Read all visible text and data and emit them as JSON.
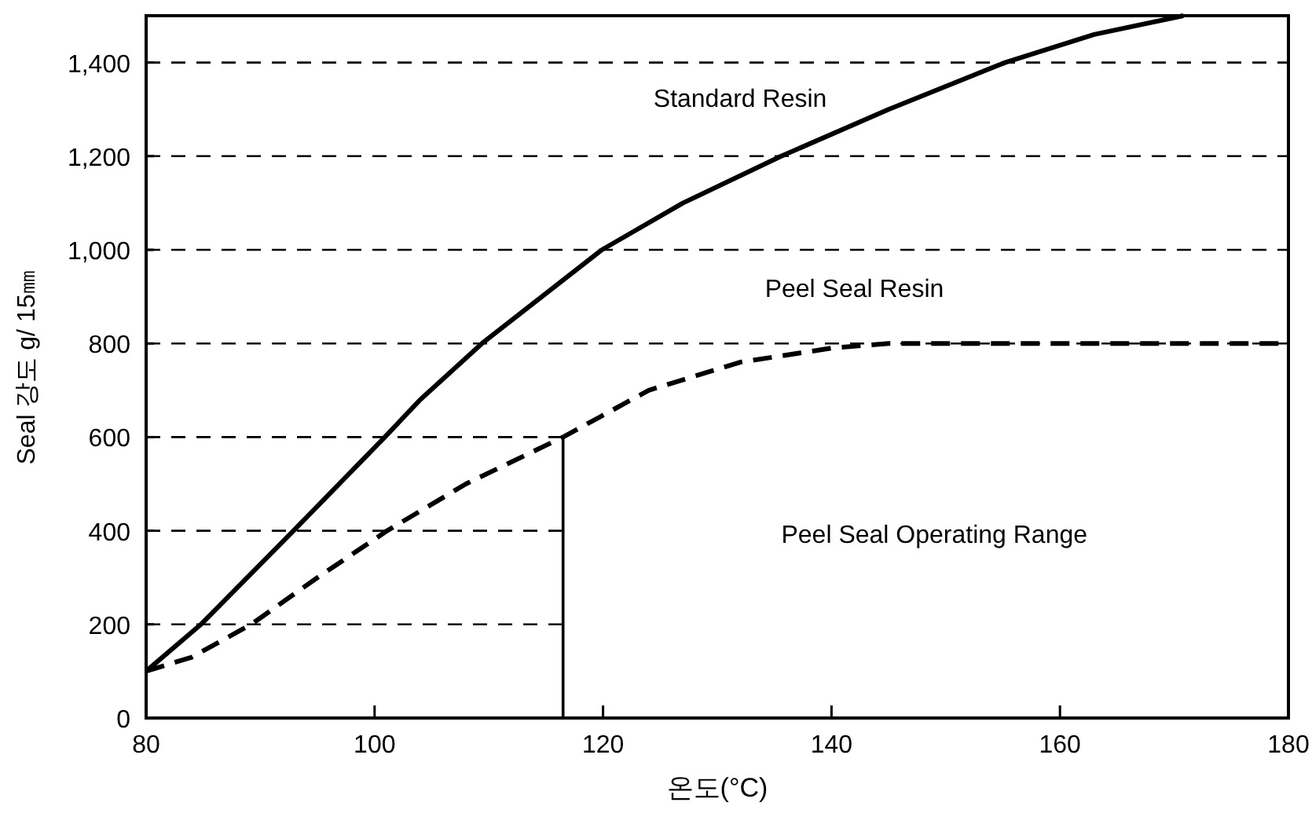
{
  "chart_data": {
    "type": "line",
    "xlabel": "온도(°C)",
    "ylabel": "Seal 강도 g/ 15㎜",
    "xlim": [
      80,
      180
    ],
    "ylim": [
      0,
      1500
    ],
    "xticks": [
      80,
      100,
      120,
      140,
      160,
      180
    ],
    "yticks": [
      0,
      200,
      400,
      600,
      800,
      {
        "value": 1000,
        "label": "1,000"
      },
      {
        "value": 1200,
        "label": "1,200"
      },
      {
        "value": 1400,
        "label": "1,400"
      }
    ],
    "legend": false,
    "series": [
      {
        "name": "Standard Resin",
        "color": "#000000",
        "line_style": "solid",
        "x": [
          80,
          84.8,
          92.9,
          100.9,
          104,
          109.4,
          119.9,
          127,
          135.6,
          145,
          155.2,
          163,
          170.8
        ],
        "values": [
          100,
          200,
          400,
          600,
          680,
          800,
          1000,
          1100,
          1200,
          1300,
          1400,
          1460,
          1500
        ]
      },
      {
        "name": "Peel Seal Resin",
        "color": "#000000",
        "line_style": "dashed",
        "x": [
          80,
          84,
          89.2,
          95,
          101.1,
          108,
          116.5,
          124,
          132,
          140,
          145,
          160,
          180
        ],
        "values": [
          100,
          130,
          200,
          300,
          400,
          500,
          600,
          700,
          760,
          790,
          800,
          800,
          800
        ]
      }
    ],
    "ref_lines": [
      {
        "axis": "x",
        "value": 116.5,
        "color": "#000000",
        "line_style": "solid"
      },
      {
        "axis": "y",
        "value": 200,
        "color": "#000000",
        "line_style": "dashed"
      },
      {
        "axis": "y",
        "value": 400,
        "color": "#000000",
        "line_style": "dashed"
      },
      {
        "axis": "y",
        "value": 600,
        "color": "#000000",
        "line_style": "dashed"
      },
      {
        "axis": "y",
        "value": 800,
        "color": "#000000",
        "line_style": "dashed"
      },
      {
        "axis": "y",
        "value": 1000,
        "color": "#000000",
        "line_style": "dashed"
      },
      {
        "axis": "y",
        "value": 1200,
        "color": "#000000",
        "line_style": "dashed"
      },
      {
        "axis": "y",
        "value": 1400,
        "color": "#000000",
        "line_style": "dashed"
      }
    ],
    "annotations": [
      "Peel Seal Operating Range"
    ]
  }
}
